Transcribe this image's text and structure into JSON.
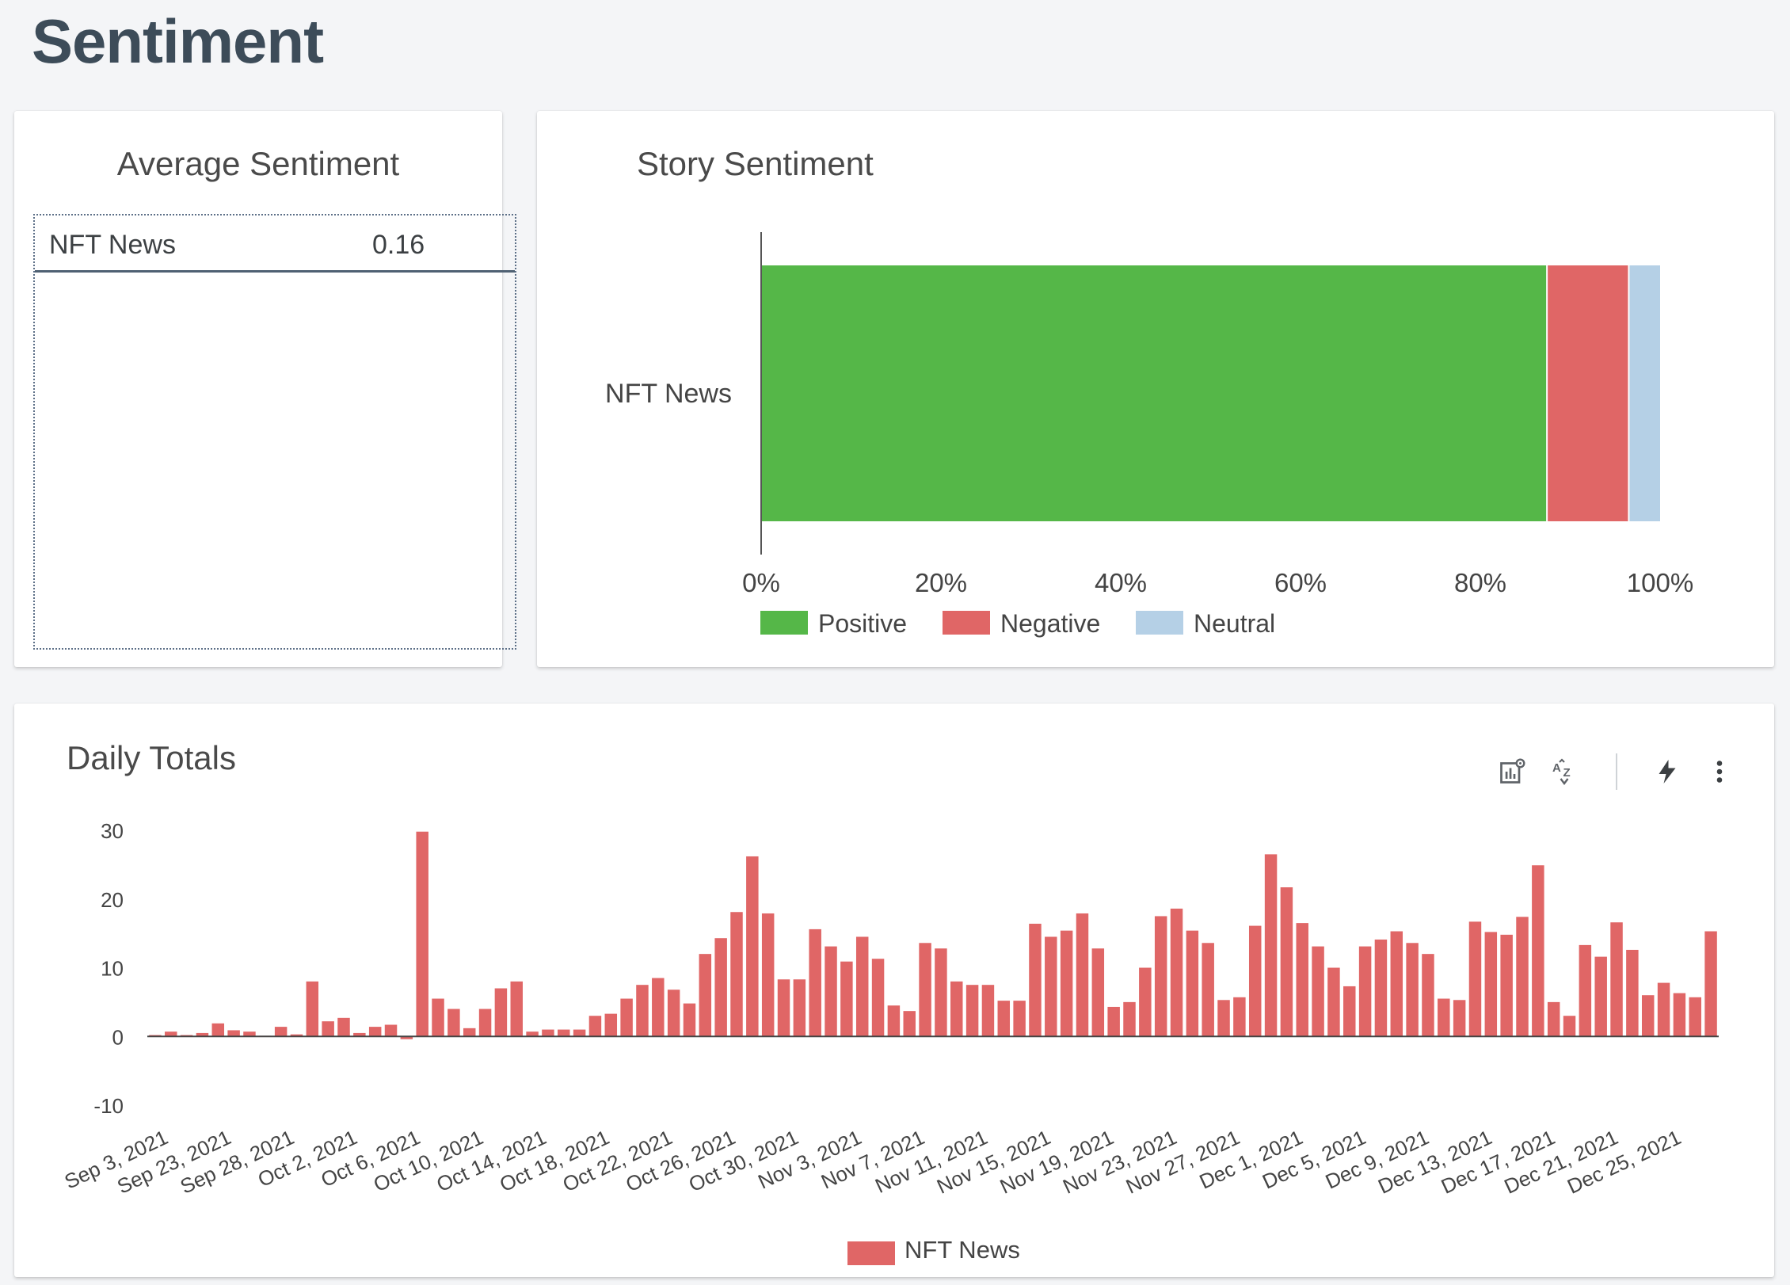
{
  "page": {
    "title": "Sentiment"
  },
  "average_sentiment": {
    "title": "Average Sentiment",
    "rows": [
      {
        "name": "NFT News",
        "value": "0.16"
      }
    ]
  },
  "story_sentiment": {
    "title": "Story Sentiment"
  },
  "daily_totals": {
    "title": "Daily Totals",
    "toolbar": {
      "chart_settings_icon": "chart-settings-icon",
      "sort_icon": "sort-az-icon",
      "quick_explore_icon": "lightning-icon",
      "more_icon": "more-vert-icon"
    }
  },
  "colors": {
    "positive": "#55b748",
    "negative": "#e06666",
    "neutral": "#b5d0e6",
    "series": "#e06666"
  },
  "chart_data": [
    {
      "type": "bar",
      "orientation": "horizontal",
      "stacked": "percent",
      "title": "Story Sentiment",
      "categories": [
        "NFT News"
      ],
      "series": [
        {
          "name": "Positive",
          "values": [
            87.5
          ]
        },
        {
          "name": "Negative",
          "values": [
            9.1
          ]
        },
        {
          "name": "Neutral",
          "values": [
            3.4
          ]
        }
      ],
      "x_ticks": [
        "0%",
        "20%",
        "40%",
        "60%",
        "80%",
        "100%"
      ],
      "xlim": [
        0,
        100
      ],
      "legend": "bottom"
    },
    {
      "type": "bar",
      "title": "Daily Totals",
      "y_ticks": [
        "30",
        "20",
        "10",
        "0",
        "-10"
      ],
      "ylim": [
        -10,
        30
      ],
      "x_tick_labels": [
        "Sep 3, 2021",
        "Sep 23, 2021",
        "Sep 28, 2021",
        "Oct 2, 2021",
        "Oct 6, 2021",
        "Oct 10, 2021",
        "Oct 14, 2021",
        "Oct 18, 2021",
        "Oct 22, 2021",
        "Oct 26, 2021",
        "Oct 30, 2021",
        "Nov 3, 2021",
        "Nov 7, 2021",
        "Nov 11, 2021",
        "Nov 15, 2021",
        "Nov 19, 2021",
        "Nov 23, 2021",
        "Nov 27, 2021",
        "Dec 1, 2021",
        "Dec 5, 2021",
        "Dec 9, 2021",
        "Dec 13, 2021",
        "Dec 17, 2021",
        "Dec 21, 2021",
        "Dec 25, 2021"
      ],
      "series": [
        {
          "name": "NFT News",
          "values": [
            0.2,
            0.7,
            0.2,
            0.5,
            1.9,
            0.9,
            0.7,
            0.1,
            1.4,
            0.3,
            8,
            2.2,
            2.7,
            0.5,
            1.4,
            1.7,
            -0.4,
            29.8,
            5.5,
            4,
            1.2,
            4,
            7,
            8,
            0.7,
            1,
            1,
            1,
            3,
            3.3,
            5.5,
            7.5,
            8.5,
            6.8,
            4.8,
            12,
            14.3,
            18.1,
            26.2,
            17.9,
            8.3,
            8.3,
            15.6,
            13.1,
            10.9,
            14.5,
            11.3,
            4.5,
            3.7,
            13.6,
            12.8,
            8,
            7.5,
            7.5,
            5.2,
            5.2,
            16.4,
            14.5,
            15.4,
            17.9,
            12.8,
            4.3,
            5,
            10,
            17.5,
            18.6,
            15.4,
            13.6,
            5.3,
            5.7,
            16.1,
            26.5,
            21.7,
            16.5,
            13.1,
            10,
            7.3,
            13.1,
            14.1,
            15.3,
            13.6,
            12,
            5.5,
            5.3,
            16.7,
            15.2,
            14.8,
            17.4,
            24.9,
            5,
            3,
            13.3,
            11.6,
            16.6,
            12.6,
            6,
            7.8,
            6.3,
            5.7,
            15.3
          ]
        }
      ],
      "legend": "bottom"
    }
  ]
}
